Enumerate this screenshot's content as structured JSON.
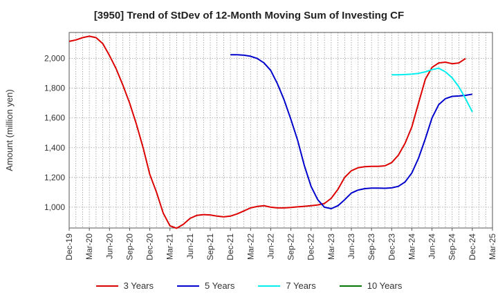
{
  "title": "[3950]  Trend of StDev of 12-Month Moving Sum of Investing CF",
  "chart_data": {
    "type": "line",
    "title": "[3950]  Trend of StDev of 12-Month Moving Sum of Investing CF",
    "xlabel": "",
    "ylabel": "Amount (million yen)",
    "ylim": [
      860,
      2175
    ],
    "yticks": [
      1000,
      1200,
      1400,
      1600,
      1800,
      2000
    ],
    "ytick_labels": [
      "1,000",
      "1,200",
      "1,400",
      "1,600",
      "1,800",
      "2,000"
    ],
    "xtick_labels": [
      "Dec-19",
      "Mar-20",
      "Jun-20",
      "Sep-20",
      "Dec-20",
      "Mar-21",
      "Jun-21",
      "Sep-21",
      "Dec-21",
      "Mar-22",
      "Jun-22",
      "Sep-22",
      "Dec-22",
      "Mar-23",
      "Jun-23",
      "Sep-23",
      "Dec-23",
      "Mar-24",
      "Jun-24",
      "Sep-24",
      "Dec-24",
      "Mar-25"
    ],
    "grid": true,
    "legend_position": "bottom",
    "series": [
      {
        "name": "3 Years",
        "color": "#dd0000",
        "start_index": 0,
        "values": [
          2115,
          2125,
          2140,
          2150,
          2140,
          2100,
          2020,
          1930,
          1820,
          1700,
          1560,
          1400,
          1220,
          1100,
          960,
          875,
          858,
          885,
          925,
          945,
          950,
          948,
          940,
          935,
          940,
          955,
          975,
          995,
          1005,
          1010,
          1000,
          995,
          995,
          998,
          1002,
          1006,
          1010,
          1015,
          1025,
          1060,
          1120,
          1200,
          1245,
          1265,
          1272,
          1275,
          1275,
          1278,
          1300,
          1350,
          1430,
          1540,
          1700,
          1860,
          1940,
          1970,
          1975,
          1965,
          1970,
          2000
        ]
      },
      {
        "name": "5 Years",
        "color": "#0000cc",
        "start_index": 24,
        "values": [
          2025,
          2025,
          2022,
          2015,
          2000,
          1970,
          1920,
          1830,
          1720,
          1590,
          1450,
          1280,
          1140,
          1050,
          1000,
          990,
          1010,
          1050,
          1095,
          1115,
          1125,
          1128,
          1128,
          1127,
          1130,
          1140,
          1170,
          1230,
          1330,
          1460,
          1600,
          1690,
          1730,
          1745,
          1748,
          1752,
          1760
        ]
      },
      {
        "name": "7 Years",
        "color": "#00eeee",
        "start_index": 48,
        "values": [
          1890,
          1890,
          1892,
          1895,
          1900,
          1910,
          1925,
          1935,
          1910,
          1870,
          1810,
          1730,
          1640
        ]
      },
      {
        "name": "10 Years",
        "color": "#007700",
        "start_index": 0,
        "values": []
      }
    ]
  }
}
